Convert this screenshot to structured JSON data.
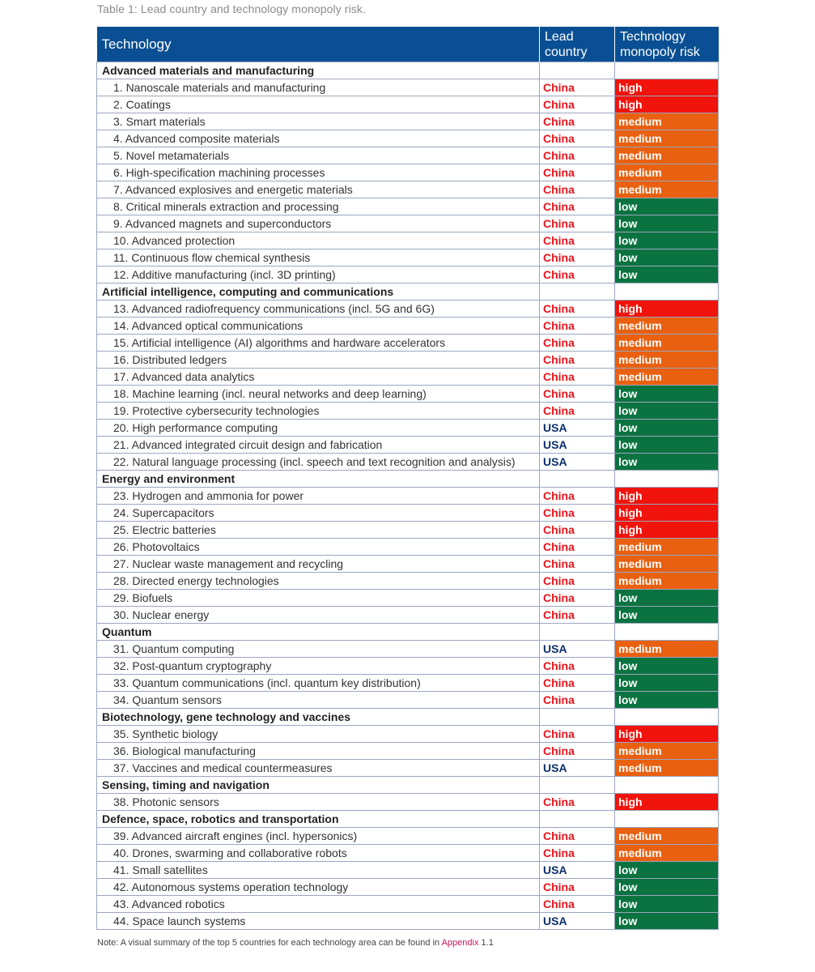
{
  "caption": "Table 1: Lead country and technology monopoly risk.",
  "headers": {
    "technology": "Technology",
    "lead_country": "Lead country",
    "risk": "Technology monopoly risk"
  },
  "sections": [
    {
      "title": "Advanced materials and manufacturing",
      "rows": [
        {
          "tech": "1. Nanoscale materials and manufacturing",
          "country": "China",
          "risk": "high"
        },
        {
          "tech": "2. Coatings",
          "country": "China",
          "risk": "high"
        },
        {
          "tech": "3. Smart materials",
          "country": "China",
          "risk": "medium"
        },
        {
          "tech": "4. Advanced composite materials",
          "country": "China",
          "risk": "medium"
        },
        {
          "tech": "5. Novel metamaterials",
          "country": "China",
          "risk": "medium"
        },
        {
          "tech": "6. High-specification machining processes",
          "country": "China",
          "risk": "medium"
        },
        {
          "tech": "7. Advanced explosives and energetic materials",
          "country": "China",
          "risk": "medium"
        },
        {
          "tech": "8. Critical minerals extraction and processing",
          "country": "China",
          "risk": "low"
        },
        {
          "tech": "9. Advanced magnets and superconductors",
          "country": "China",
          "risk": "low"
        },
        {
          "tech": "10. Advanced protection",
          "country": "China",
          "risk": "low"
        },
        {
          "tech": "11. Continuous flow chemical synthesis",
          "country": "China",
          "risk": "low"
        },
        {
          "tech": "12. Additive manufacturing (incl. 3D printing)",
          "country": "China",
          "risk": "low"
        }
      ]
    },
    {
      "title": "Artificial intelligence, computing and communications",
      "rows": [
        {
          "tech": "13. Advanced radiofrequency communications (incl. 5G and 6G)",
          "country": "China",
          "risk": "high"
        },
        {
          "tech": "14. Advanced optical communications",
          "country": "China",
          "risk": "medium"
        },
        {
          "tech": "15. Artificial intelligence (AI) algorithms and hardware accelerators",
          "country": "China",
          "risk": "medium"
        },
        {
          "tech": "16. Distributed ledgers",
          "country": "China",
          "risk": "medium"
        },
        {
          "tech": "17. Advanced data analytics",
          "country": "China",
          "risk": "medium"
        },
        {
          "tech": "18. Machine learning (incl. neural networks and deep learning)",
          "country": "China",
          "risk": "low"
        },
        {
          "tech": "19. Protective cybersecurity technologies",
          "country": "China",
          "risk": "low"
        },
        {
          "tech": "20. High performance computing",
          "country": "USA",
          "risk": "low"
        },
        {
          "tech": "21. Advanced integrated circuit design and fabrication",
          "country": "USA",
          "risk": "low"
        },
        {
          "tech": "22. Natural language processing (incl. speech and text recognition and analysis)",
          "country": "USA",
          "risk": "low"
        }
      ]
    },
    {
      "title": "Energy and environment",
      "rows": [
        {
          "tech": "23. Hydrogen and ammonia for power",
          "country": "China",
          "risk": "high"
        },
        {
          "tech": "24. Supercapacitors",
          "country": "China",
          "risk": "high"
        },
        {
          "tech": "25. Electric batteries",
          "country": "China",
          "risk": "high"
        },
        {
          "tech": "26. Photovoltaics",
          "country": "China",
          "risk": "medium"
        },
        {
          "tech": "27. Nuclear waste management and recycling",
          "country": "China",
          "risk": "medium"
        },
        {
          "tech": "28. Directed energy technologies",
          "country": "China",
          "risk": "medium"
        },
        {
          "tech": "29. Biofuels",
          "country": "China",
          "risk": "low"
        },
        {
          "tech": "30. Nuclear energy",
          "country": "China",
          "risk": "low"
        }
      ]
    },
    {
      "title": "Quantum",
      "rows": [
        {
          "tech": "31. Quantum computing",
          "country": "USA",
          "risk": "medium"
        },
        {
          "tech": "32. Post-quantum cryptography",
          "country": "China",
          "risk": "low"
        },
        {
          "tech": "33. Quantum communications (incl. quantum key distribution)",
          "country": "China",
          "risk": "low"
        },
        {
          "tech": "34. Quantum sensors",
          "country": "China",
          "risk": "low"
        }
      ]
    },
    {
      "title": "Biotechnology, gene technology and vaccines",
      "rows": [
        {
          "tech": "35. Synthetic biology",
          "country": "China",
          "risk": "high"
        },
        {
          "tech": "36. Biological manufacturing",
          "country": "China",
          "risk": "medium"
        },
        {
          "tech": "37. Vaccines and medical countermeasures",
          "country": "USA",
          "risk": "medium"
        }
      ]
    },
    {
      "title": "Sensing, timing and navigation",
      "rows": [
        {
          "tech": "38. Photonic sensors",
          "country": "China",
          "risk": "high"
        }
      ]
    },
    {
      "title": "Defence, space, robotics and transportation",
      "rows": [
        {
          "tech": "39. Advanced aircraft engines (incl. hypersonics)",
          "country": "China",
          "risk": "medium"
        },
        {
          "tech": "40. Drones, swarming and collaborative robots",
          "country": "China",
          "risk": "medium"
        },
        {
          "tech": "41. Small satellites",
          "country": "USA",
          "risk": "low"
        },
        {
          "tech": "42. Autonomous systems operation technology",
          "country": "China",
          "risk": "low"
        },
        {
          "tech": "43. Advanced robotics",
          "country": "China",
          "risk": "low"
        },
        {
          "tech": "44. Space launch systems",
          "country": "USA",
          "risk": "low"
        }
      ]
    }
  ],
  "note": {
    "prefix": "Note: A visual summary of the top 5 countries for each technology area can be found in ",
    "link": "Appendix",
    "suffix": " 1.1"
  },
  "colors": {
    "header_bg": "#0a4f93",
    "high": "#f0140c",
    "medium": "#e96010",
    "low": "#0b7340",
    "china_text": "#e8141c",
    "usa_text": "#0a2f6b"
  }
}
